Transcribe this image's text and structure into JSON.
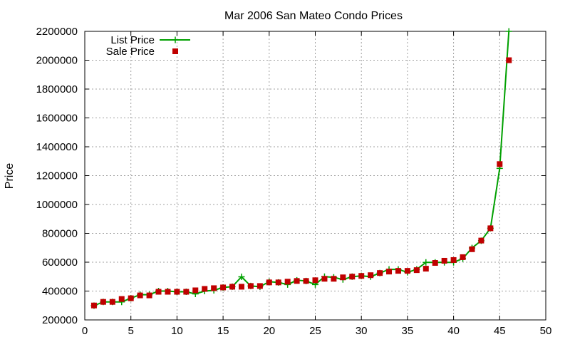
{
  "chart_data": {
    "type": "line",
    "title": "Mar 2006 San Mateo Condo Prices",
    "xlabel": "",
    "ylabel": "Price",
    "xlim": [
      0,
      50
    ],
    "ylim": [
      200000,
      2200000
    ],
    "xticks": [
      0,
      5,
      10,
      15,
      20,
      25,
      30,
      35,
      40,
      45,
      50
    ],
    "yticks": [
      200000,
      400000,
      600000,
      800000,
      1000000,
      1200000,
      1400000,
      1600000,
      1800000,
      2000000,
      2200000
    ],
    "xtick_labels": [
      "0",
      "5",
      "10",
      "15",
      "20",
      "25",
      "30",
      "35",
      "40",
      "45",
      "50"
    ],
    "ytick_labels": [
      "200000",
      "400000",
      "600000",
      "800000",
      "1000000",
      "1200000",
      "1400000",
      "1600000",
      "1800000",
      "2000000",
      "2200000"
    ],
    "grid": true,
    "legend_position": "top-left",
    "x": [
      1,
      2,
      3,
      4,
      5,
      6,
      7,
      8,
      9,
      10,
      11,
      12,
      13,
      14,
      15,
      16,
      17,
      18,
      19,
      20,
      21,
      22,
      23,
      24,
      25,
      26,
      27,
      28,
      29,
      30,
      31,
      32,
      33,
      34,
      35,
      36,
      37,
      38,
      39,
      40,
      41,
      42,
      43,
      44,
      45,
      46
    ],
    "series": [
      {
        "name": "List Price",
        "style": "line-plus",
        "color": "#00a000",
        "values": [
          299000,
          325000,
          325000,
          325000,
          350000,
          375000,
          375000,
          400000,
          400000,
          395000,
          395000,
          380000,
          400000,
          405000,
          425000,
          430000,
          499000,
          435000,
          430000,
          465000,
          460000,
          445000,
          475000,
          470000,
          445000,
          500000,
          495000,
          480000,
          500000,
          505000,
          500000,
          525000,
          550000,
          550000,
          530000,
          550000,
          599000,
          599000,
          599000,
          599000,
          625000,
          699000,
          749000,
          835000,
          1250000,
          2200000
        ]
      },
      {
        "name": "Sale Price",
        "style": "square-markers",
        "color": "#c00000",
        "values": [
          300000,
          325000,
          325000,
          345000,
          350000,
          370000,
          370000,
          395000,
          395000,
          395000,
          395000,
          405000,
          415000,
          420000,
          425000,
          430000,
          430000,
          435000,
          435000,
          460000,
          460000,
          465000,
          470000,
          470000,
          475000,
          485000,
          485000,
          495000,
          500000,
          505000,
          510000,
          525000,
          535000,
          540000,
          540000,
          545000,
          555000,
          595000,
          610000,
          615000,
          635000,
          690000,
          750000,
          835000,
          1280000,
          2000000
        ]
      }
    ]
  }
}
